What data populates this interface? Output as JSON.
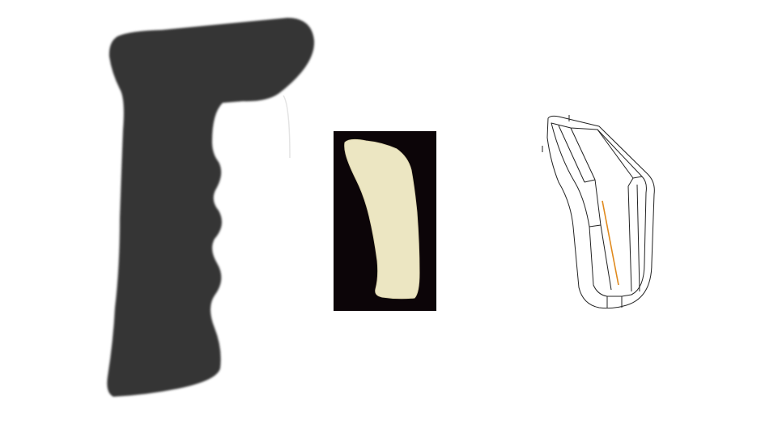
{
  "figure": {
    "panels": [
      {
        "id": "grip-silhouette",
        "kind": "dark pistol grip handle silhouette"
      },
      {
        "id": "foam-sample",
        "kind": "cream foam insert photo on black background"
      },
      {
        "id": "grip-line-drawing",
        "kind": "technical line drawing of grip insert"
      }
    ]
  },
  "colors": {
    "background": "#ffffff",
    "grip_fill": "#363636",
    "foam_fill": "#ece6c2",
    "foam_background": "#0c0508",
    "drawing_stroke": "#222222",
    "drawing_accent": "#e08a1e"
  }
}
